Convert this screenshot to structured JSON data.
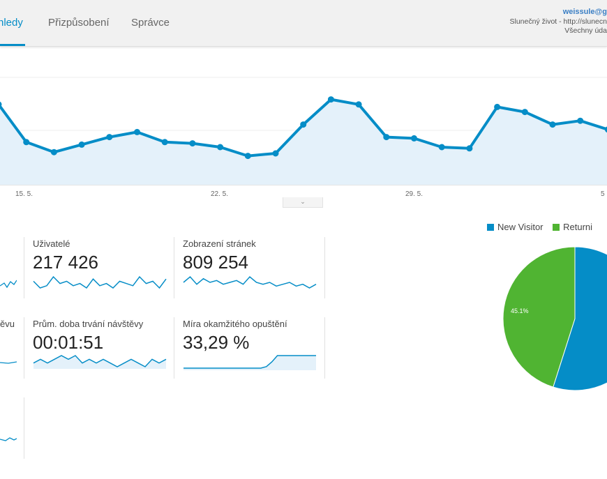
{
  "nav": {
    "tabs": [
      {
        "label": "hledy",
        "active": true
      },
      {
        "label": "Přizpůsobení",
        "active": false
      },
      {
        "label": "Správce",
        "active": false
      }
    ]
  },
  "account": {
    "email": "weissule@g",
    "property": "Slunečný život - http://slunecn",
    "view": "Všechny úda"
  },
  "colors": {
    "accent": "#058dc7",
    "new_visitor": "#058dc7",
    "returning_visitor": "#50b432",
    "area_fill": "#e4f1fa"
  },
  "main_chart": {
    "type": "line",
    "x_ticks": [
      "15. 5.",
      "22. 5.",
      "29. 5.",
      "5"
    ],
    "values": [
      32,
      17,
      13,
      16,
      19,
      21,
      17,
      16.5,
      15,
      11.5,
      12.5,
      24,
      34,
      32,
      19,
      18.5,
      15,
      14.5,
      31,
      29,
      24,
      25.5,
      22
    ]
  },
  "expander": {
    "icon": "chevron-down-icon",
    "glyph": "⌄"
  },
  "metrics": {
    "users": {
      "label": "Uživatelé",
      "value": "217 426",
      "spark": [
        6,
        3,
        4,
        8,
        5,
        6,
        4,
        5,
        3,
        7,
        4,
        5,
        3,
        6,
        5,
        4,
        8,
        5,
        6,
        3,
        7
      ]
    },
    "pageviews": {
      "label": "Zobrazení stránek",
      "value": "809 254",
      "spark": [
        5,
        8,
        4,
        7,
        5,
        6,
        4,
        5,
        6,
        4,
        8,
        5,
        4,
        5,
        3,
        4,
        5,
        3,
        4,
        2,
        4
      ]
    },
    "avg_session": {
      "label": "Prům. doba trvání návštěvy",
      "value": "00:01:51",
      "spark": [
        5,
        6,
        5,
        6,
        7,
        6,
        7,
        5,
        6,
        5,
        6,
        5,
        4,
        5,
        6,
        5,
        4,
        6,
        5,
        6
      ]
    },
    "bounce_rate": {
      "label": "Míra okamžitého opuštění",
      "value": "33,29 %",
      "spark": [
        1,
        1,
        1,
        1,
        1,
        1,
        1,
        1,
        1,
        1,
        1,
        1,
        1,
        1,
        1,
        2,
        5,
        9,
        9,
        9,
        9,
        9,
        9,
        9,
        9
      ]
    },
    "partial_label_2": "ěvu"
  },
  "pie": {
    "legend": [
      {
        "label": "New Visitor",
        "color": "#058dc7"
      },
      {
        "label": "Returni",
        "color": "#50b432"
      }
    ],
    "slices": [
      {
        "name": "New Visitor",
        "value": 54.9,
        "color": "#058dc7"
      },
      {
        "name": "Returning Visitor",
        "value": 45.1,
        "color": "#50b432"
      }
    ],
    "label_returning": "45.1%"
  }
}
